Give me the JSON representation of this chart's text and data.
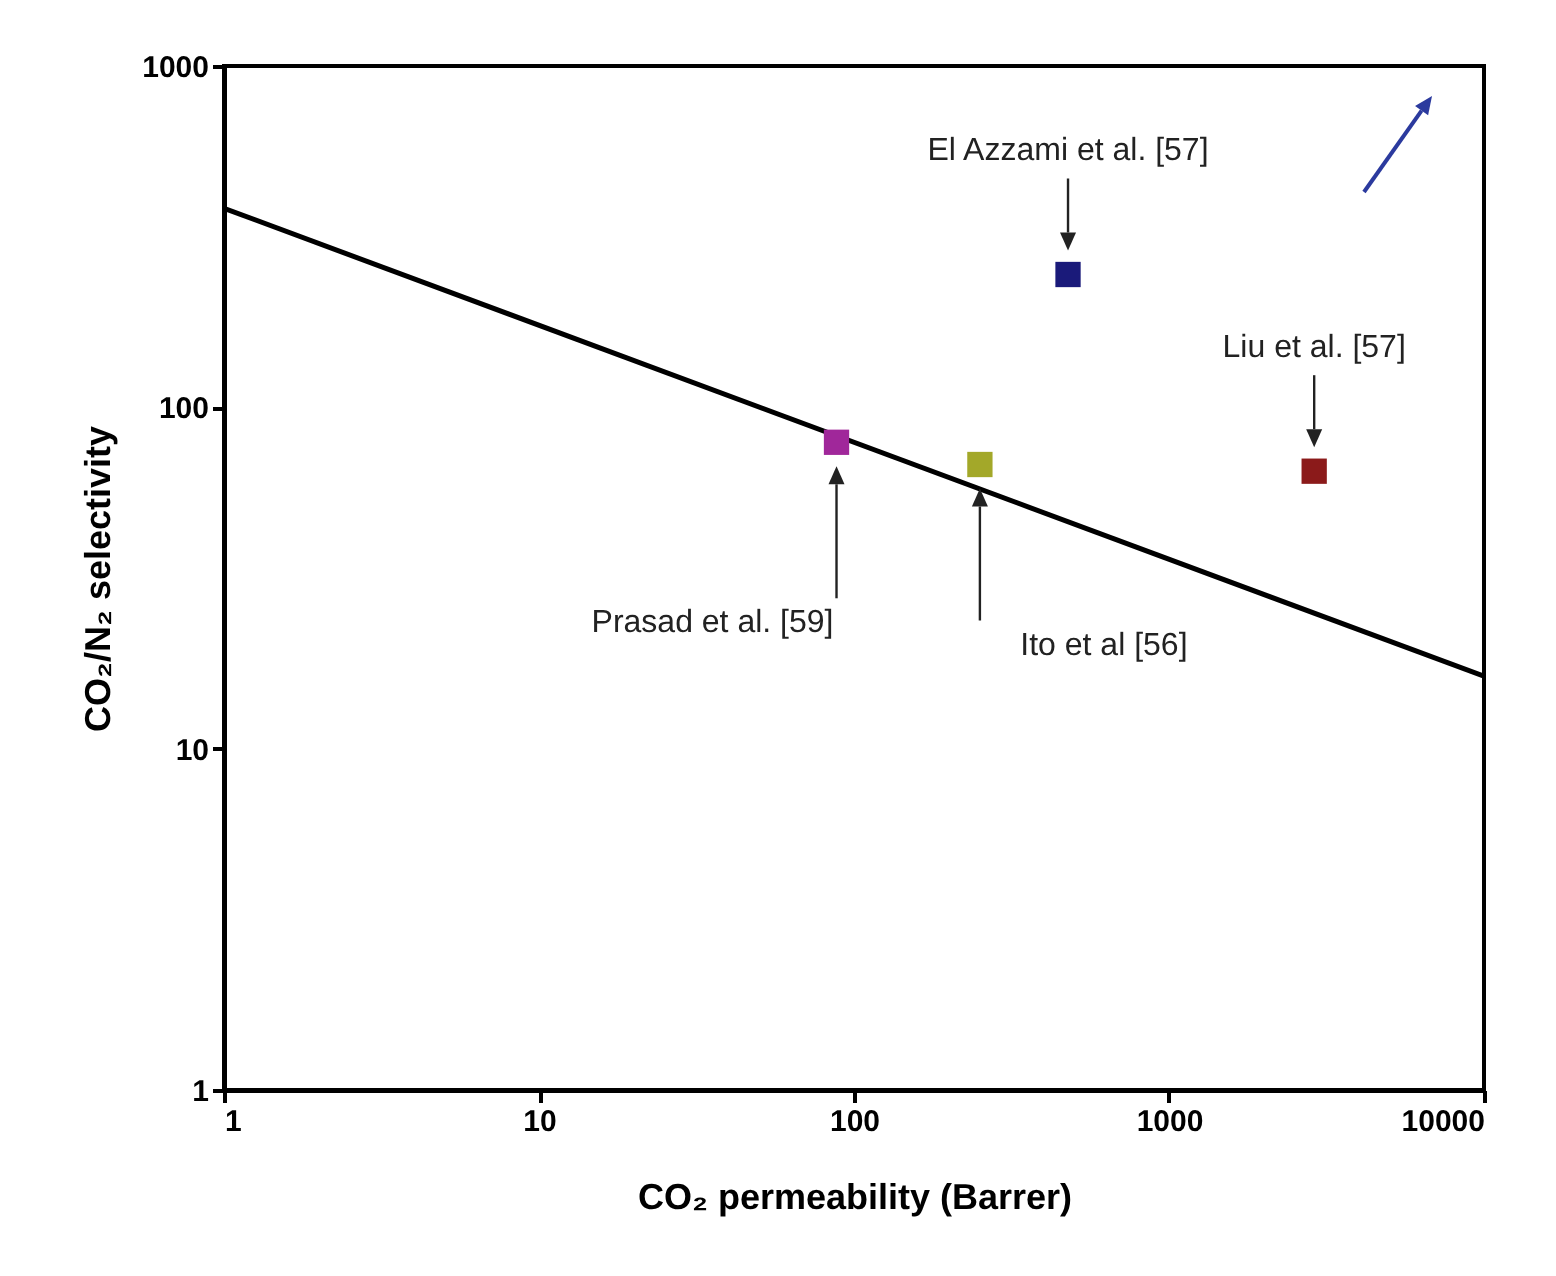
{
  "chart_data": {
    "type": "scatter",
    "xlabel": "CO₂ permeability (Barrer)",
    "ylabel": "CO₂/N₂ selectivity",
    "log": "xy",
    "xlim": [
      1,
      10000
    ],
    "ylim": [
      1,
      1000
    ],
    "xticks": [
      1,
      10,
      100,
      1000,
      10000
    ],
    "yticks": [
      1,
      10,
      100,
      1000
    ],
    "grid": false,
    "legend": false,
    "series": [
      {
        "type": "line",
        "color": "#000000",
        "x": [
          1,
          10000
        ],
        "values": [
          383,
          16.3
        ]
      },
      {
        "marker": "square",
        "x": [
          88,
          251,
          478,
          2890
        ],
        "values": [
          79,
          68,
          245,
          65
        ],
        "colors": [
          "#a0279a",
          "#a3a829",
          "#1a1a7a",
          "#8b1a1a"
        ]
      }
    ],
    "annotations": [
      "Prasad et al. [59]",
      "Ito et al [56]",
      "El Azzami et al. [57]",
      "Liu et al. [57]"
    ]
  }
}
